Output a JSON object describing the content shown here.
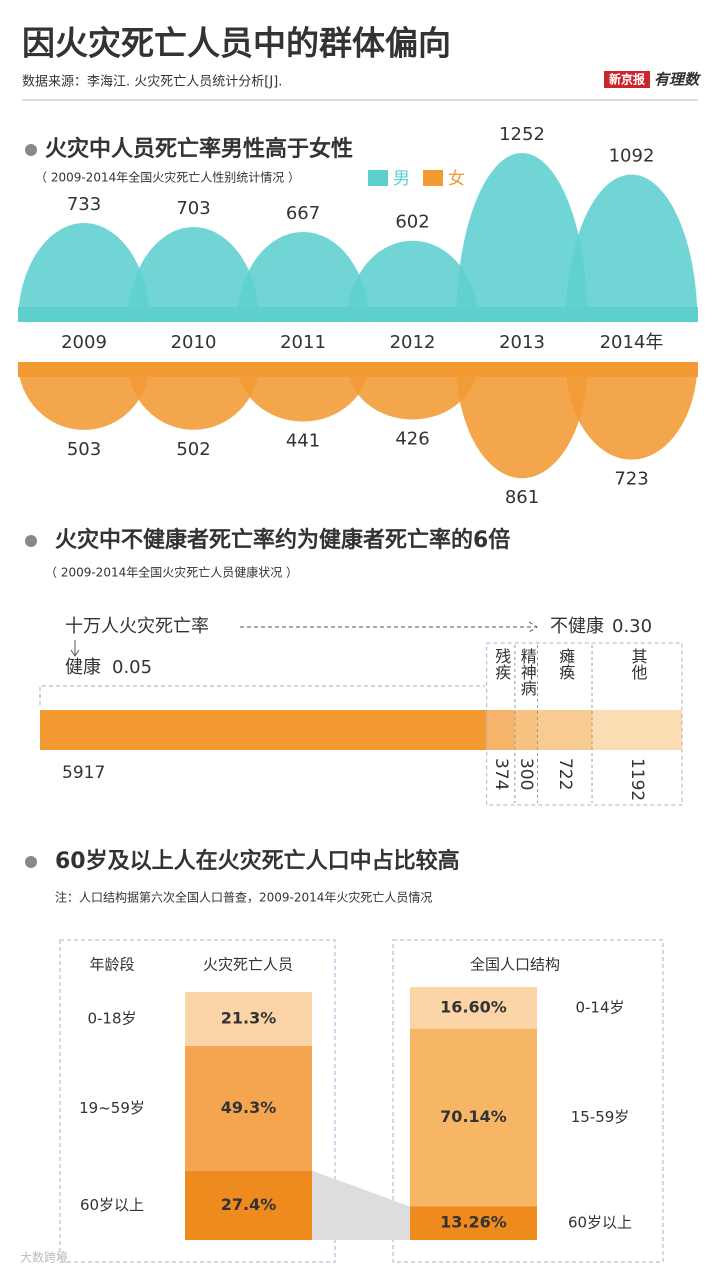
{
  "title": "因火灾死亡人员中的群体偏向",
  "source": "数据来源：李海江. 火灾死亡人员统计分析[J].",
  "brand": [
    "新京报",
    "有理数"
  ],
  "watermark": "大数跨境",
  "chart_data": [
    {
      "type": "mirror-bubble",
      "title": "火灾中人员死亡率男性高于女性",
      "subtitle": "（ 2009-2014年全国火灾死亡人性别统计情况 ）",
      "categories": [
        "2009",
        "2010",
        "2011",
        "2012",
        "2013",
        "2014年"
      ],
      "series": [
        {
          "name": "男",
          "color": "#5ecfcf",
          "values": [
            733,
            703,
            667,
            602,
            1252,
            1092
          ]
        },
        {
          "name": "女",
          "color": "#f39a33",
          "values": [
            503,
            502,
            441,
            426,
            861,
            723
          ]
        }
      ]
    },
    {
      "type": "stacked-hbar",
      "title": "火灾中不健康者死亡率约为健康者死亡率的6倍",
      "subtitle": "（ 2009-2014年全国火灾死亡人员健康状况 ）",
      "rate_label": "十万人火灾死亡率",
      "rates": {
        "categories": [
          "健康",
          "不健康"
        ],
        "values": [
          0.05,
          0.3
        ],
        "value_labels": [
          "0.05",
          "0.30"
        ]
      },
      "categories": [
        null,
        "残疾",
        "精神病",
        "瘫痪",
        "其他"
      ],
      "values": [
        5917,
        374,
        300,
        722,
        1192
      ],
      "colors": [
        "#f39a33",
        "#f6b46b",
        "#f7c180",
        "#f8cb92",
        "#fbdcb3"
      ]
    },
    {
      "type": "stacked-column",
      "title": "60岁及以上人在火灾死亡人口中占比较高",
      "note": "注：人口结构据第六次全国人口普查，2009-2014年火灾死亡人员情况",
      "axis_label": "年龄段",
      "series": [
        {
          "name": "火灾死亡人员",
          "categories": [
            "0-18岁",
            "19~59岁",
            "60岁以上"
          ],
          "values": [
            21.3,
            49.3,
            27.4
          ],
          "value_labels": [
            "21.3%",
            "49.3%",
            "27.4%"
          ],
          "colors": [
            "#fbd5a8",
            "#f5a54f",
            "#ef8a1e"
          ]
        },
        {
          "name": "全国人口结构",
          "categories": [
            "0-14岁",
            "15-59岁",
            "60岁以上"
          ],
          "values": [
            16.6,
            70.14,
            13.26
          ],
          "value_labels": [
            "16.60%",
            "70.14%",
            "13.26%"
          ],
          "colors": [
            "#fbd5a8",
            "#f7b566",
            "#ef8a1e"
          ]
        }
      ]
    }
  ]
}
